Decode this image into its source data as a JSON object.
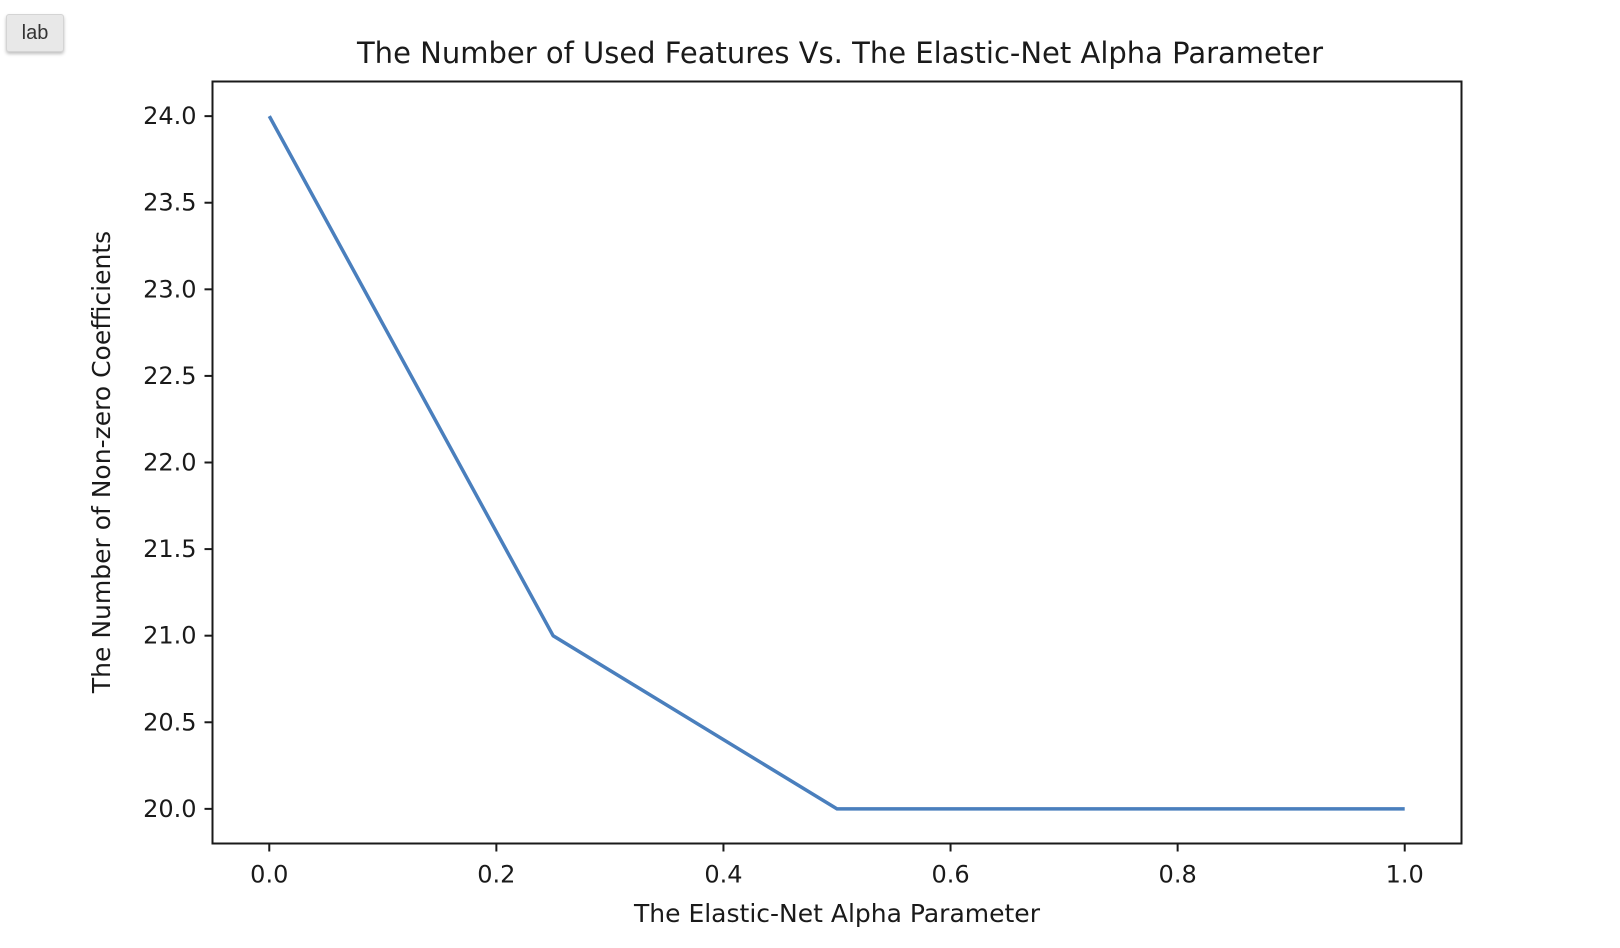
{
  "badge": {
    "label": "lab"
  },
  "chart_data": {
    "type": "line",
    "title": "The Number of Used Features Vs. The Elastic-Net Alpha Parameter",
    "xlabel": "The Elastic-Net Alpha Parameter",
    "ylabel": "The Number of Non-zero Coefficients",
    "x": [
      0.0,
      0.25,
      0.5,
      0.75,
      1.0
    ],
    "series": [
      {
        "values": [
          24,
          21,
          20,
          20,
          20
        ],
        "color": "#4a7fbd"
      }
    ],
    "xlim": [
      -0.05,
      1.05
    ],
    "ylim": [
      19.8,
      24.2
    ],
    "xticks": [
      "0.0",
      "0.2",
      "0.4",
      "0.6",
      "0.8",
      "1.0"
    ],
    "yticks": [
      "20.0",
      "20.5",
      "21.0",
      "21.5",
      "22.0",
      "22.5",
      "23.0",
      "23.5",
      "24.0"
    ],
    "grid": false,
    "legend": false
  }
}
